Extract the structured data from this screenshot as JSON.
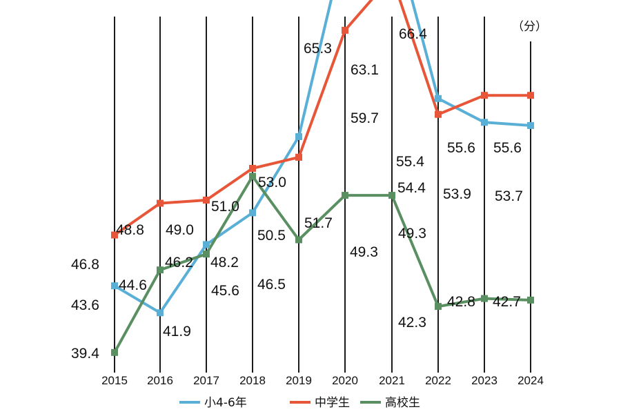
{
  "chart_data": {
    "type": "line",
    "unit": "（分）",
    "x": [
      "2015",
      "2016",
      "2017",
      "2018",
      "2019",
      "2020",
      "2021",
      "2022",
      "2023",
      "2024"
    ],
    "series": [
      {
        "name": "小4-6年",
        "color": "#5aafd6",
        "values": [
          43.6,
          41.9,
          46.2,
          48.2,
          53.0,
          65.3,
          66.4,
          55.4,
          53.9,
          53.7
        ]
      },
      {
        "name": "中学生",
        "color": "#e8563a",
        "values": [
          46.8,
          48.8,
          49.0,
          51.0,
          51.7,
          59.7,
          63.1,
          54.4,
          55.6,
          55.6
        ]
      },
      {
        "name": "高校生",
        "color": "#5a8f62",
        "values": [
          39.4,
          44.6,
          45.6,
          50.5,
          46.5,
          49.3,
          49.3,
          42.3,
          42.8,
          42.7
        ]
      }
    ],
    "data_labels": [
      {
        "text": "43.6"
      },
      {
        "text": "41.9"
      },
      {
        "text": "46.2"
      },
      {
        "text": "48.2"
      },
      {
        "text": "53.0"
      },
      {
        "text": "65.3"
      },
      {
        "text": "66.4"
      },
      {
        "text": "55.4"
      },
      {
        "text": "53.9"
      },
      {
        "text": "53.7"
      },
      {
        "text": "46.8"
      },
      {
        "text": "48.8"
      },
      {
        "text": "49.0"
      },
      {
        "text": "51.0"
      },
      {
        "text": "51.7"
      },
      {
        "text": "59.7"
      },
      {
        "text": "63.1"
      },
      {
        "text": "54.4"
      },
      {
        "text": "55.6"
      },
      {
        "text": "55.6"
      },
      {
        "text": "39.4"
      },
      {
        "text": "44.6"
      },
      {
        "text": "45.6"
      },
      {
        "text": "50.5"
      },
      {
        "text": "46.5"
      },
      {
        "text": "49.3"
      },
      {
        "text": "49.3"
      },
      {
        "text": "42.3"
      },
      {
        "text": "42.8"
      },
      {
        "text": "42.7"
      }
    ],
    "grid": "vertical",
    "legend": "bottom-center"
  }
}
